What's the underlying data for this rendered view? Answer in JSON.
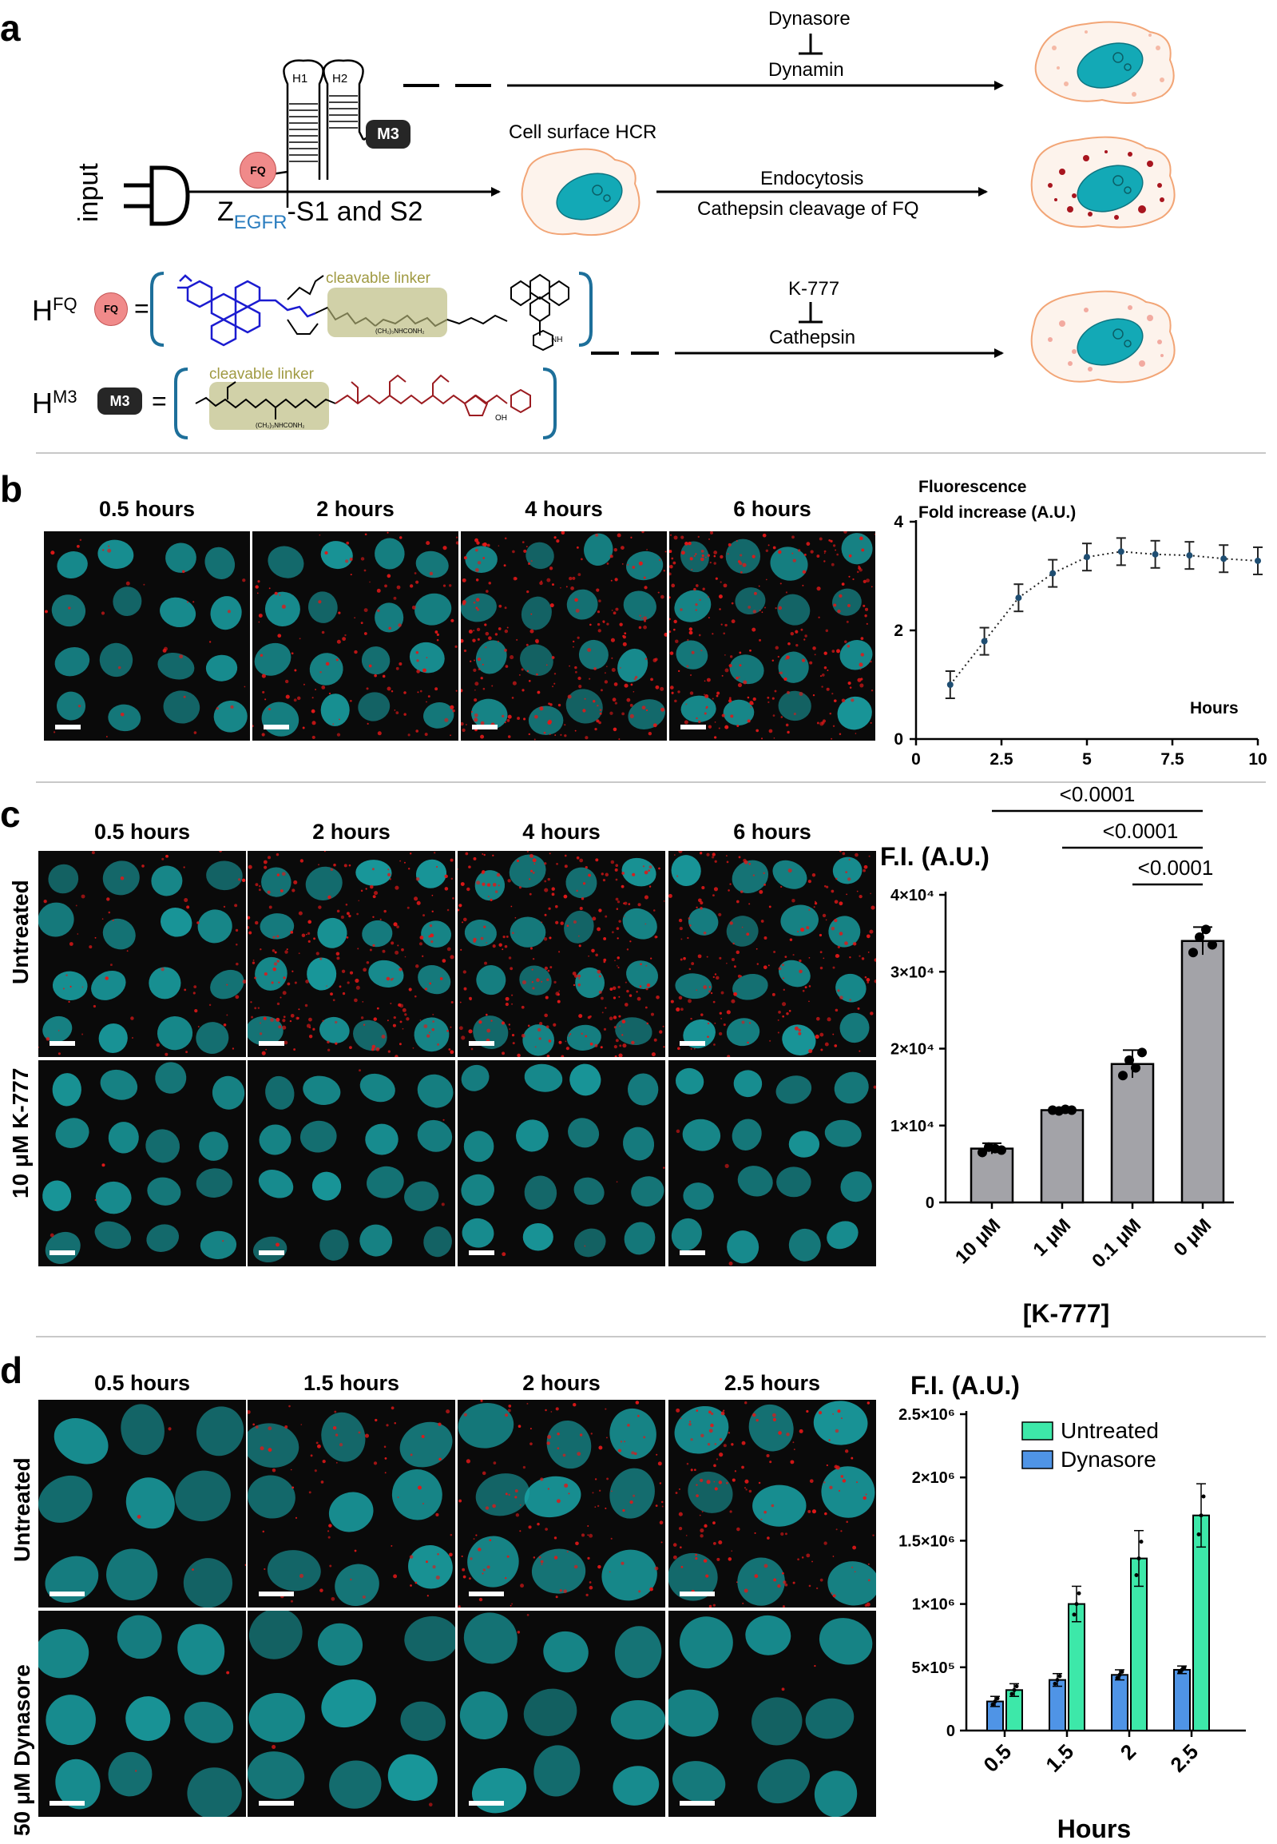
{
  "panels": {
    "a": "a",
    "b": "b",
    "c": "c",
    "d": "d"
  },
  "panel_a": {
    "inhibitor_top": "Dynasore",
    "target_top": "Dynamin",
    "hairpin1": "H1",
    "hairpin2": "H2",
    "m3_badge": "M3",
    "fq_badge": "FQ",
    "input_label": "input",
    "probe_label_z": "Z",
    "probe_label_sub": "EGFR",
    "probe_label_rest": "-S1 and S2",
    "hcr_label": "Cell surface HCR",
    "step_mid_1": "Endocytosis",
    "step_mid_2": "Cathepsin cleavage of FQ",
    "inhibitor_bottom": "K-777",
    "target_bottom": "Cathepsin",
    "hfq_label": "H",
    "hfq_sup": "FQ",
    "hm3_label": "H",
    "hm3_sup": "M3",
    "linker_label": "cleavable linker",
    "chem_text_1": "(CH₂)₃NHCONH₂",
    "chem_text_2": "NH",
    "chem_text_3": "OH"
  },
  "panel_b": {
    "timepoints": [
      "0.5 hours",
      "2 hours",
      "4 hours",
      "6 hours"
    ]
  },
  "panel_c": {
    "timepoints": [
      "0.5 hours",
      "2 hours",
      "4 hours",
      "6 hours"
    ],
    "rows": [
      "Untreated",
      "10 μM K-777"
    ]
  },
  "panel_d": {
    "timepoints": [
      "0.5 hours",
      "1.5 hours",
      "2 hours",
      "2.5 hours"
    ],
    "rows": [
      "Untreated",
      "50 μM Dynasore"
    ]
  },
  "colors": {
    "nucleus": "#1aa5a8",
    "puncta": "#e01818",
    "bar_grey": "#a3a3a8",
    "untreated": "#3de8a9",
    "dynasore": "#4f94e6",
    "cell_outline": "#f2a576",
    "cell_fill": "#fdf3ec"
  },
  "chart_data": [
    {
      "type": "line",
      "title": "Fluorescence",
      "subtitle": "Fold increase (A.U.)",
      "xlabel": "Hours",
      "x": [
        1,
        2,
        3,
        4,
        5,
        6,
        7,
        8,
        9,
        10
      ],
      "y": [
        1.0,
        1.8,
        2.6,
        3.05,
        3.35,
        3.45,
        3.4,
        3.38,
        3.32,
        3.28
      ],
      "err": [
        0.25,
        0.25,
        0.25,
        0.25,
        0.25,
        0.25,
        0.25,
        0.25,
        0.25,
        0.25
      ],
      "xlim": [
        0,
        10
      ],
      "ylim": [
        0,
        4
      ],
      "xticks": [
        "0",
        "2.5",
        "5",
        "7.5",
        "10"
      ],
      "yticks": [
        "0",
        "2",
        "4"
      ]
    },
    {
      "type": "bar",
      "ylabel": "F.I. (A.U.)",
      "xlabel": "[K-777]",
      "categories": [
        "10 μM",
        "1 μM",
        "0.1 μM",
        "0 μM"
      ],
      "values": [
        7000,
        12000,
        18000,
        34000
      ],
      "err": [
        700,
        300,
        1800,
        1800
      ],
      "points": [
        [
          6500,
          7200,
          7000,
          6800
        ],
        [
          12000,
          11900,
          12100,
          12000
        ],
        [
          16500,
          18500,
          17500,
          19500
        ],
        [
          32500,
          34500,
          35500,
          33500
        ]
      ],
      "ylim": [
        0,
        40000
      ],
      "yticks": [
        "0",
        "1×10⁴",
        "2×10⁴",
        "3×10⁴",
        "4×10⁴"
      ],
      "significance": [
        "<0.0001",
        "<0.0001",
        "<0.0001"
      ]
    },
    {
      "type": "bar",
      "ylabel": "F.I. (A.U.)",
      "xlabel": "Hours",
      "categories": [
        "0.5",
        "1.5",
        "2",
        "2.5"
      ],
      "series": [
        {
          "name": "Dynasore",
          "values": [
            230000,
            400000,
            440000,
            480000
          ],
          "err": [
            40000,
            50000,
            40000,
            30000
          ]
        },
        {
          "name": "Untreated",
          "values": [
            320000,
            1000000,
            1360000,
            1700000
          ],
          "err": [
            50000,
            140000,
            220000,
            250000
          ]
        }
      ],
      "ylim": [
        0,
        2500000
      ],
      "yticks": [
        "0",
        "5×10⁵",
        "1×10⁶",
        "1.5×10⁶",
        "2×10⁶",
        "2.5×10⁶"
      ],
      "legend": [
        "Untreated",
        "Dynasore"
      ],
      "legend_placement": "top-left"
    }
  ]
}
